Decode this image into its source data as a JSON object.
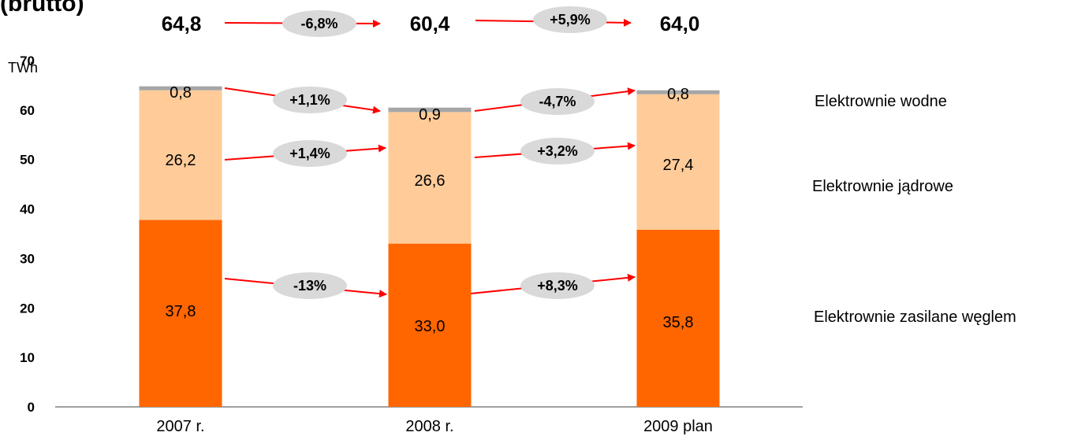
{
  "title_fragment": "(brutto)",
  "colors": {
    "coal": "#ff6600",
    "nuclear": "#ffcc99",
    "hydro": "#a6a6a6",
    "arrow": "#ff0000",
    "bubble": "#d9d9d9"
  },
  "chart_data": {
    "type": "bar",
    "stacked": true,
    "ylabel": "TWh",
    "ylim": [
      0,
      70
    ],
    "yticks": [
      "0",
      "10",
      "20",
      "30",
      "40",
      "50",
      "60",
      "70"
    ],
    "categories": [
      "2007 r.",
      "2008 r.",
      "2009 plan"
    ],
    "series": [
      {
        "name": "Elektrownie zasilane węglem",
        "values": [
          37.8,
          33.0,
          35.8
        ],
        "labels": [
          "37,8",
          "33,0",
          "35,8"
        ]
      },
      {
        "name": "Elektrownie jądrowe",
        "values": [
          26.2,
          26.6,
          27.4
        ],
        "labels": [
          "26,2",
          "26,6",
          "27,4"
        ]
      },
      {
        "name": "Elektrownie wodne",
        "values": [
          0.8,
          0.9,
          0.8
        ],
        "labels": [
          "0,8",
          "0,9",
          "0,8"
        ]
      }
    ],
    "totals": [
      "64,8",
      "60,4",
      "64,0"
    ],
    "changes": {
      "total": [
        "-6,8%",
        "+5,9%"
      ],
      "hydro": [
        "+1,1%",
        "-4,7%"
      ],
      "nuclear": [
        "+1,4%",
        "+3,2%"
      ],
      "coal": [
        "-13%",
        "+8,3%"
      ]
    }
  }
}
